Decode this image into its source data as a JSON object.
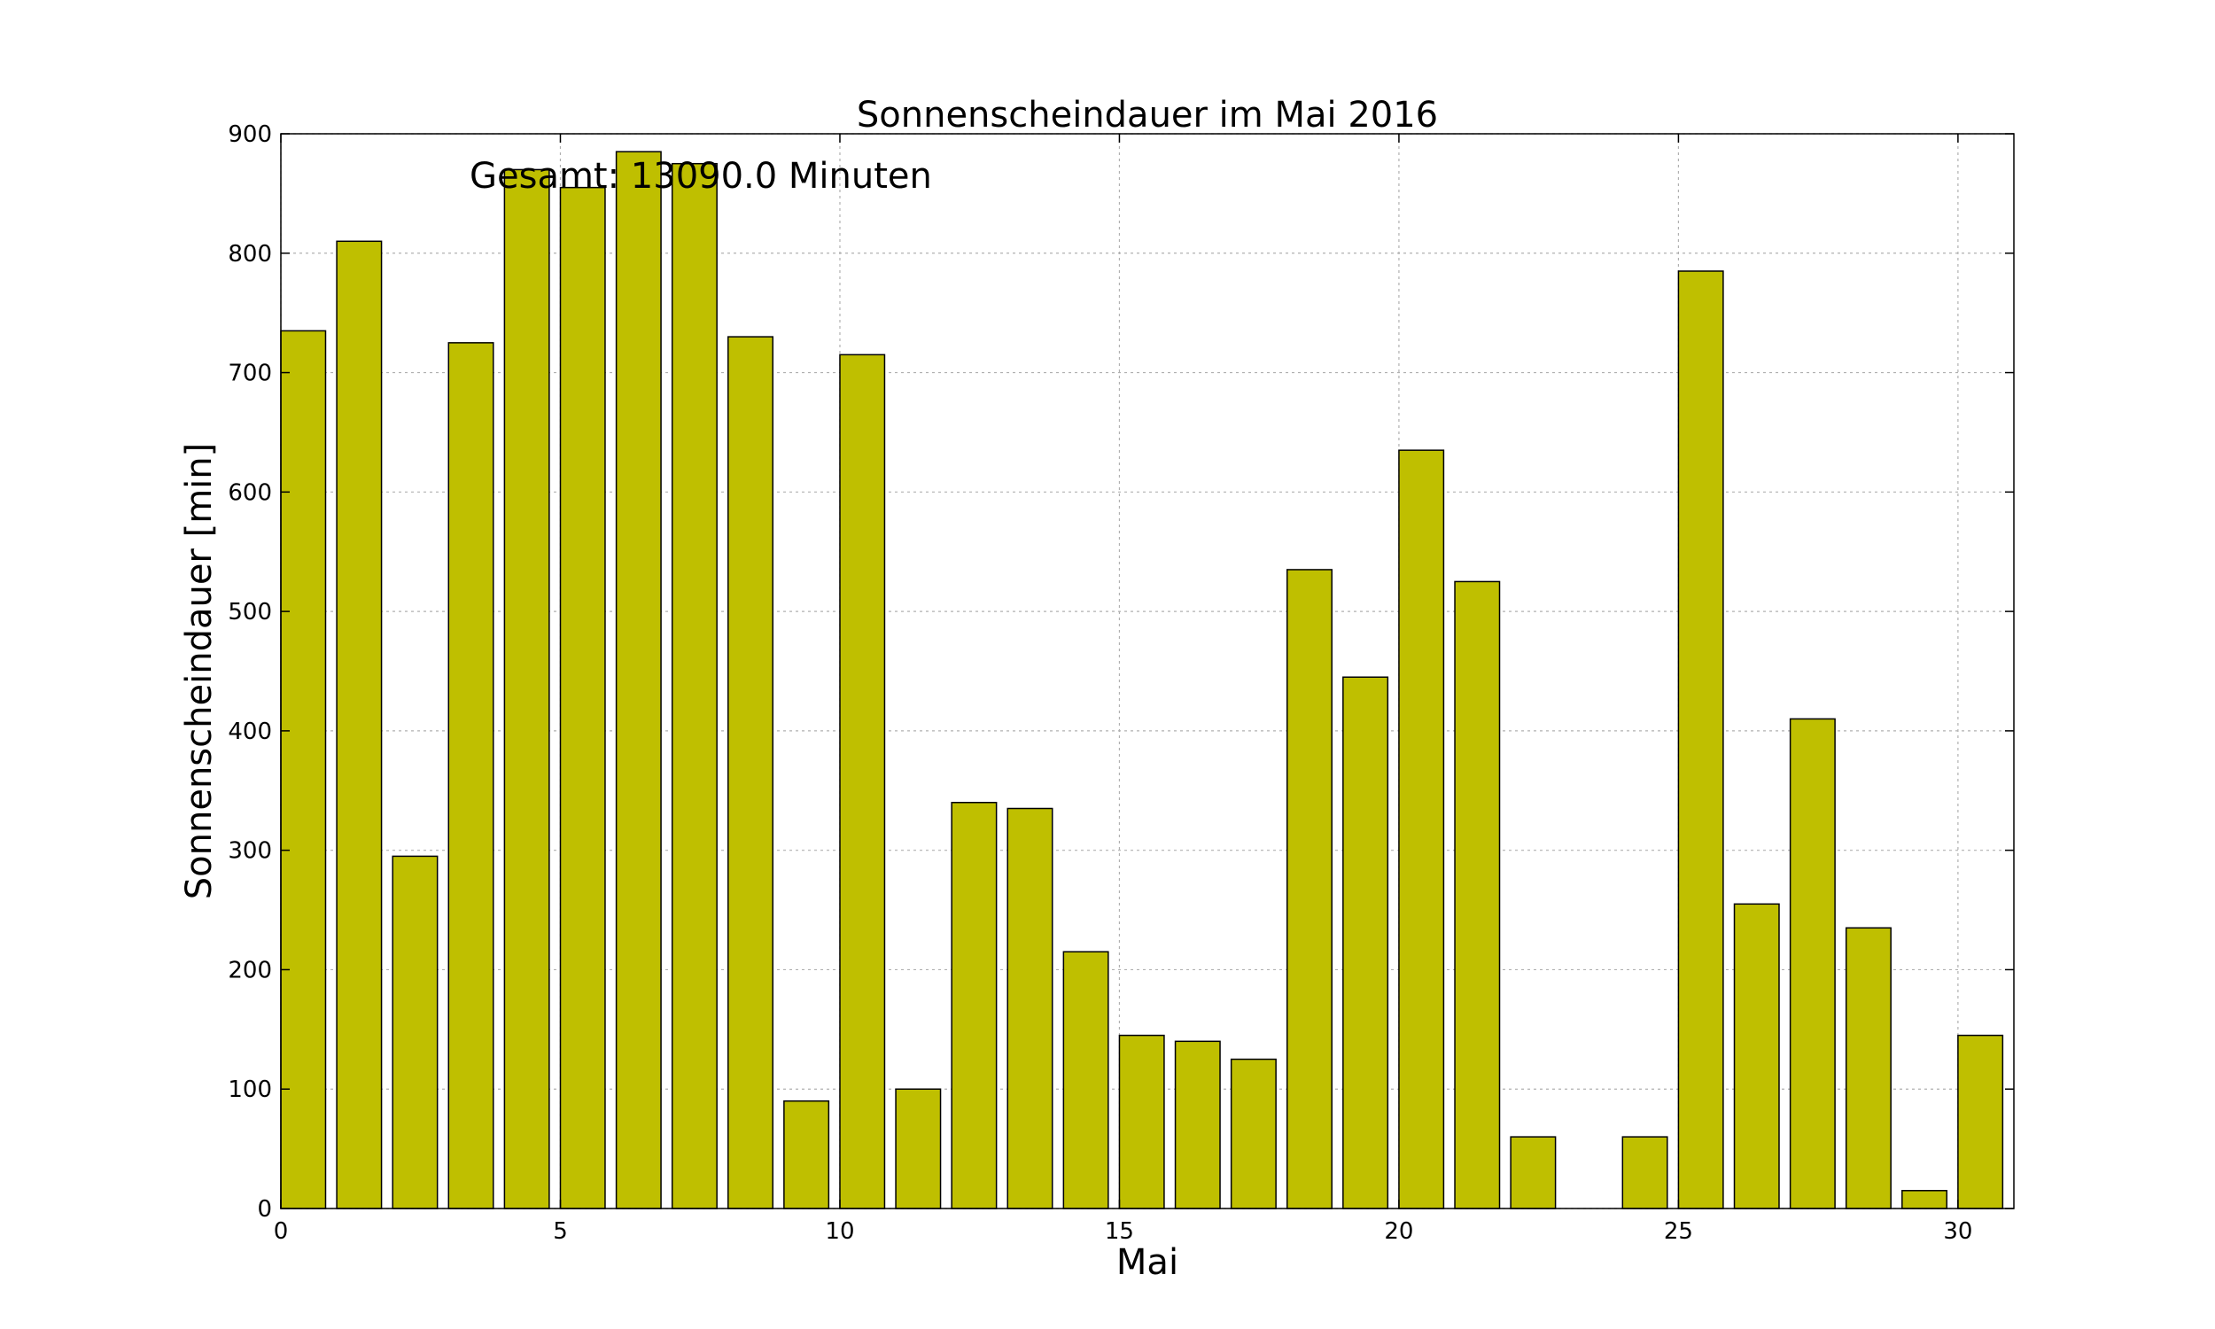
{
  "chart_data": {
    "type": "bar",
    "title": "Sonnenscheindauer im Mai 2016",
    "xlabel": "Mai",
    "ylabel": "Sonnenscheindauer [min]",
    "annotation": "Gesamt: 13090.0 Minuten",
    "x": [
      0,
      1,
      2,
      3,
      4,
      5,
      6,
      7,
      8,
      9,
      10,
      11,
      12,
      13,
      14,
      15,
      16,
      17,
      18,
      19,
      20,
      21,
      22,
      23,
      24,
      25,
      26,
      27,
      28,
      29,
      30
    ],
    "values": [
      735,
      810,
      295,
      725,
      870,
      855,
      885,
      875,
      730,
      90,
      715,
      100,
      340,
      335,
      215,
      145,
      140,
      125,
      535,
      445,
      635,
      525,
      60,
      0,
      60,
      785,
      255,
      410,
      235,
      15,
      145
    ],
    "bar_width": 0.8,
    "xlim": [
      0,
      31
    ],
    "ylim": [
      0,
      900
    ],
    "xticks": [
      0,
      5,
      10,
      15,
      20,
      25,
      30
    ],
    "yticks": [
      0,
      100,
      200,
      300,
      400,
      500,
      600,
      700,
      800,
      900
    ],
    "grid": true,
    "bar_color": "#bfbf00",
    "edge_color": "#000000"
  }
}
